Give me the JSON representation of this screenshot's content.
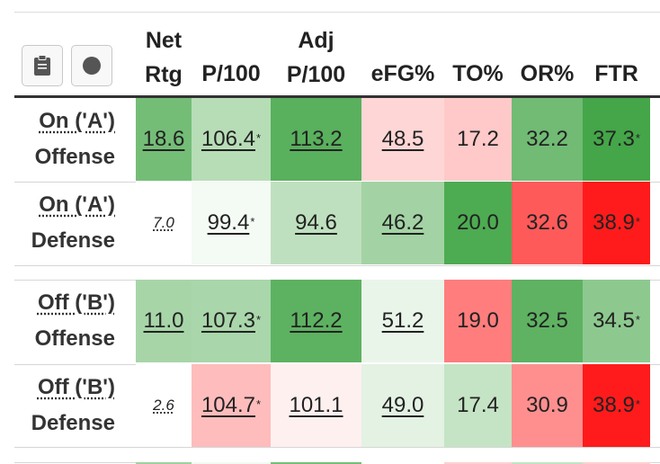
{
  "toolbar": {
    "clipboard_icon": "clipboard-icon",
    "circle_icon": "circle-icon"
  },
  "columns": [
    {
      "key": "net",
      "line1": "Net",
      "line2": "Rtg"
    },
    {
      "key": "p100",
      "line1": "",
      "line2": "P/100"
    },
    {
      "key": "adjp100",
      "line1": "Adj",
      "line2": "P/100"
    },
    {
      "key": "efg",
      "line1": "",
      "line2": "eFG%"
    },
    {
      "key": "to",
      "line1": "",
      "line2": "TO%"
    },
    {
      "key": "or",
      "line1": "",
      "line2": "OR%"
    },
    {
      "key": "ftr",
      "line1": "",
      "line2": "FTR"
    }
  ],
  "rows": [
    {
      "label1": "On ('A')",
      "label2": "Offense",
      "cells": [
        {
          "value": "18.6",
          "star": "",
          "style": "ul",
          "bg": "#74bd77"
        },
        {
          "value": "106.4",
          "star": "*",
          "style": "ul",
          "bg": "#b7ddb7"
        },
        {
          "value": "113.2",
          "star": "",
          "style": "ul",
          "bg": "#59b05d"
        },
        {
          "value": "48.5",
          "star": "",
          "style": "ul",
          "bg": "#ffd6d6"
        },
        {
          "value": "17.2",
          "star": "",
          "style": "plain",
          "bg": "#ffc9c9"
        },
        {
          "value": "32.2",
          "star": "",
          "style": "plain",
          "bg": "#71bb74"
        },
        {
          "value": "37.3",
          "star": "*",
          "style": "plain",
          "bg": "#44a648"
        }
      ]
    },
    {
      "label1": "On ('A')",
      "label2": "Defense",
      "cells": [
        {
          "value": "7.0",
          "star": "",
          "style": "small",
          "bg": "#ffffff"
        },
        {
          "value": "99.4",
          "star": "*",
          "style": "ul",
          "bg": "#f4faf4"
        },
        {
          "value": "94.6",
          "star": "",
          "style": "ul",
          "bg": "#bfe0bf"
        },
        {
          "value": "46.2",
          "star": "",
          "style": "ul",
          "bg": "#a3d3a4"
        },
        {
          "value": "20.0",
          "star": "",
          "style": "plain",
          "bg": "#4dab51"
        },
        {
          "value": "32.6",
          "star": "",
          "style": "plain",
          "bg": "#ff5a5a"
        },
        {
          "value": "38.9",
          "star": "*",
          "style": "plain",
          "bg": "#ff1b1b"
        }
      ]
    },
    {
      "label1": "Off ('B')",
      "label2": "Offense",
      "cells": [
        {
          "value": "11.0",
          "star": "",
          "style": "ul",
          "bg": "#a7d5a8"
        },
        {
          "value": "107.3",
          "star": "*",
          "style": "ul",
          "bg": "#a9d6aa"
        },
        {
          "value": "112.2",
          "star": "",
          "style": "ul",
          "bg": "#5db261"
        },
        {
          "value": "51.2",
          "star": "",
          "style": "ul",
          "bg": "#eaf5ea"
        },
        {
          "value": "19.0",
          "star": "",
          "style": "plain",
          "bg": "#ff7d7d"
        },
        {
          "value": "32.5",
          "star": "",
          "style": "plain",
          "bg": "#5eb262"
        },
        {
          "value": "34.5",
          "star": "*",
          "style": "plain",
          "bg": "#8dc98f"
        }
      ]
    },
    {
      "label1": "Off ('B')",
      "label2": "Defense",
      "cells": [
        {
          "value": "2.6",
          "star": "",
          "style": "small",
          "bg": "#ffffff"
        },
        {
          "value": "104.7",
          "star": "*",
          "style": "ul",
          "bg": "#ffbcbc"
        },
        {
          "value": "101.1",
          "star": "",
          "style": "ul",
          "bg": "#fff0f0"
        },
        {
          "value": "49.0",
          "star": "",
          "style": "ul",
          "bg": "#e3f2e3"
        },
        {
          "value": "17.4",
          "star": "",
          "style": "plain",
          "bg": "#c5e4c5"
        },
        {
          "value": "30.9",
          "star": "",
          "style": "plain",
          "bg": "#ff8f8f"
        },
        {
          "value": "38.9",
          "star": "*",
          "style": "plain",
          "bg": "#ff1b1b"
        }
      ]
    }
  ]
}
